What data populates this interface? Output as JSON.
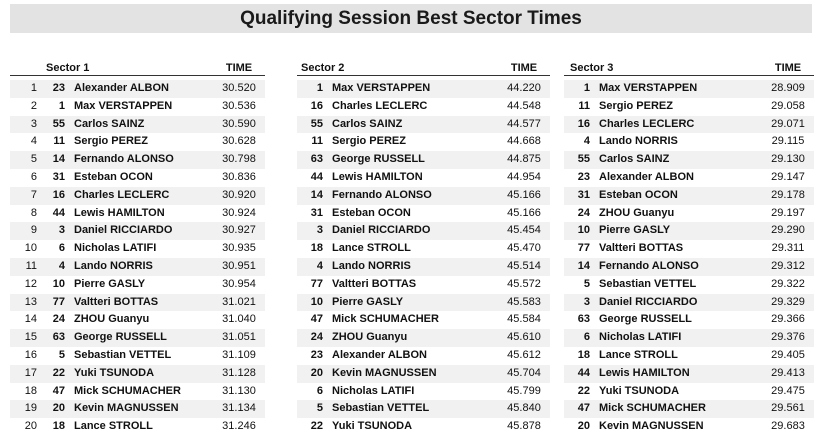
{
  "title": "Qualifying Session Best Sector Times",
  "time_label": "TIME",
  "sectors": [
    {
      "name": "Sector 1",
      "rows": [
        {
          "pos": "1",
          "num": "23",
          "driver": "Alexander ALBON",
          "time": "30.520"
        },
        {
          "pos": "2",
          "num": "1",
          "driver": "Max VERSTAPPEN",
          "time": "30.536"
        },
        {
          "pos": "3",
          "num": "55",
          "driver": "Carlos SAINZ",
          "time": "30.590"
        },
        {
          "pos": "4",
          "num": "11",
          "driver": "Sergio PEREZ",
          "time": "30.628"
        },
        {
          "pos": "5",
          "num": "14",
          "driver": "Fernando ALONSO",
          "time": "30.798"
        },
        {
          "pos": "6",
          "num": "31",
          "driver": "Esteban OCON",
          "time": "30.836"
        },
        {
          "pos": "7",
          "num": "16",
          "driver": "Charles LECLERC",
          "time": "30.920"
        },
        {
          "pos": "8",
          "num": "44",
          "driver": "Lewis HAMILTON",
          "time": "30.924"
        },
        {
          "pos": "9",
          "num": "3",
          "driver": "Daniel RICCIARDO",
          "time": "30.927"
        },
        {
          "pos": "10",
          "num": "6",
          "driver": "Nicholas LATIFI",
          "time": "30.935"
        },
        {
          "pos": "11",
          "num": "4",
          "driver": "Lando NORRIS",
          "time": "30.951"
        },
        {
          "pos": "12",
          "num": "10",
          "driver": "Pierre GASLY",
          "time": "30.954"
        },
        {
          "pos": "13",
          "num": "77",
          "driver": "Valtteri BOTTAS",
          "time": "31.021"
        },
        {
          "pos": "14",
          "num": "24",
          "driver": "ZHOU Guanyu",
          "time": "31.040"
        },
        {
          "pos": "15",
          "num": "63",
          "driver": "George RUSSELL",
          "time": "31.051"
        },
        {
          "pos": "16",
          "num": "5",
          "driver": "Sebastian VETTEL",
          "time": "31.109"
        },
        {
          "pos": "17",
          "num": "22",
          "driver": "Yuki TSUNODA",
          "time": "31.128"
        },
        {
          "pos": "18",
          "num": "47",
          "driver": "Mick SCHUMACHER",
          "time": "31.130"
        },
        {
          "pos": "19",
          "num": "20",
          "driver": "Kevin MAGNUSSEN",
          "time": "31.134"
        },
        {
          "pos": "20",
          "num": "18",
          "driver": "Lance STROLL",
          "time": "31.246"
        }
      ]
    },
    {
      "name": "Sector 2",
      "rows": [
        {
          "num": "1",
          "driver": "Max VERSTAPPEN",
          "time": "44.220"
        },
        {
          "num": "16",
          "driver": "Charles LECLERC",
          "time": "44.548"
        },
        {
          "num": "55",
          "driver": "Carlos SAINZ",
          "time": "44.577"
        },
        {
          "num": "11",
          "driver": "Sergio PEREZ",
          "time": "44.668"
        },
        {
          "num": "63",
          "driver": "George RUSSELL",
          "time": "44.875"
        },
        {
          "num": "44",
          "driver": "Lewis HAMILTON",
          "time": "44.954"
        },
        {
          "num": "14",
          "driver": "Fernando ALONSO",
          "time": "45.166"
        },
        {
          "num": "31",
          "driver": "Esteban OCON",
          "time": "45.166"
        },
        {
          "num": "3",
          "driver": "Daniel RICCIARDO",
          "time": "45.454"
        },
        {
          "num": "18",
          "driver": "Lance STROLL",
          "time": "45.470"
        },
        {
          "num": "4",
          "driver": "Lando NORRIS",
          "time": "45.514"
        },
        {
          "num": "77",
          "driver": "Valtteri BOTTAS",
          "time": "45.572"
        },
        {
          "num": "10",
          "driver": "Pierre GASLY",
          "time": "45.583"
        },
        {
          "num": "47",
          "driver": "Mick SCHUMACHER",
          "time": "45.584"
        },
        {
          "num": "24",
          "driver": "ZHOU Guanyu",
          "time": "45.610"
        },
        {
          "num": "23",
          "driver": "Alexander ALBON",
          "time": "45.612"
        },
        {
          "num": "20",
          "driver": "Kevin MAGNUSSEN",
          "time": "45.704"
        },
        {
          "num": "6",
          "driver": "Nicholas LATIFI",
          "time": "45.799"
        },
        {
          "num": "5",
          "driver": "Sebastian VETTEL",
          "time": "45.840"
        },
        {
          "num": "22",
          "driver": "Yuki TSUNODA",
          "time": "45.878"
        }
      ]
    },
    {
      "name": "Sector 3",
      "rows": [
        {
          "num": "1",
          "driver": "Max VERSTAPPEN",
          "time": "28.909"
        },
        {
          "num": "11",
          "driver": "Sergio PEREZ",
          "time": "29.058"
        },
        {
          "num": "16",
          "driver": "Charles LECLERC",
          "time": "29.071"
        },
        {
          "num": "4",
          "driver": "Lando NORRIS",
          "time": "29.115"
        },
        {
          "num": "55",
          "driver": "Carlos SAINZ",
          "time": "29.130"
        },
        {
          "num": "23",
          "driver": "Alexander ALBON",
          "time": "29.147"
        },
        {
          "num": "31",
          "driver": "Esteban OCON",
          "time": "29.178"
        },
        {
          "num": "24",
          "driver": "ZHOU Guanyu",
          "time": "29.197"
        },
        {
          "num": "10",
          "driver": "Pierre GASLY",
          "time": "29.290"
        },
        {
          "num": "77",
          "driver": "Valtteri BOTTAS",
          "time": "29.311"
        },
        {
          "num": "14",
          "driver": "Fernando ALONSO",
          "time": "29.312"
        },
        {
          "num": "5",
          "driver": "Sebastian VETTEL",
          "time": "29.322"
        },
        {
          "num": "3",
          "driver": "Daniel RICCIARDO",
          "time": "29.329"
        },
        {
          "num": "63",
          "driver": "George RUSSELL",
          "time": "29.366"
        },
        {
          "num": "6",
          "driver": "Nicholas LATIFI",
          "time": "29.376"
        },
        {
          "num": "18",
          "driver": "Lance STROLL",
          "time": "29.405"
        },
        {
          "num": "44",
          "driver": "Lewis HAMILTON",
          "time": "29.413"
        },
        {
          "num": "22",
          "driver": "Yuki TSUNODA",
          "time": "29.475"
        },
        {
          "num": "47",
          "driver": "Mick SCHUMACHER",
          "time": "29.561"
        },
        {
          "num": "20",
          "driver": "Kevin MAGNUSSEN",
          "time": "29.683"
        }
      ]
    }
  ]
}
